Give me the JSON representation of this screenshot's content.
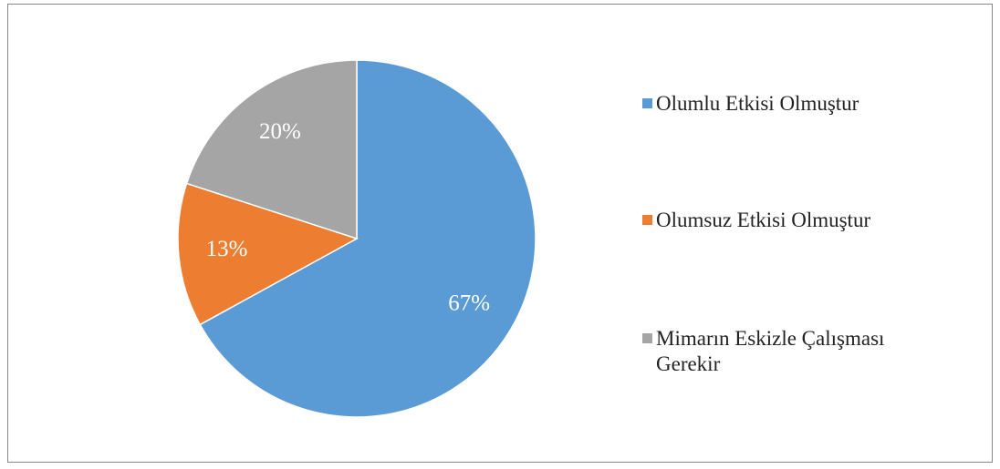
{
  "chart_data": {
    "type": "pie",
    "categories": [
      "Olumlu Etkisi Olmuştur",
      "Olumsuz Etkisi Olmuştur",
      "Mimarın Eskizle Çalışması Gerekir"
    ],
    "values": [
      67,
      13,
      20
    ],
    "value_labels": [
      "67%",
      "13%",
      "20%"
    ],
    "colors": [
      "#5b9bd5",
      "#ed7d31",
      "#a5a5a5"
    ],
    "legend": "right"
  }
}
